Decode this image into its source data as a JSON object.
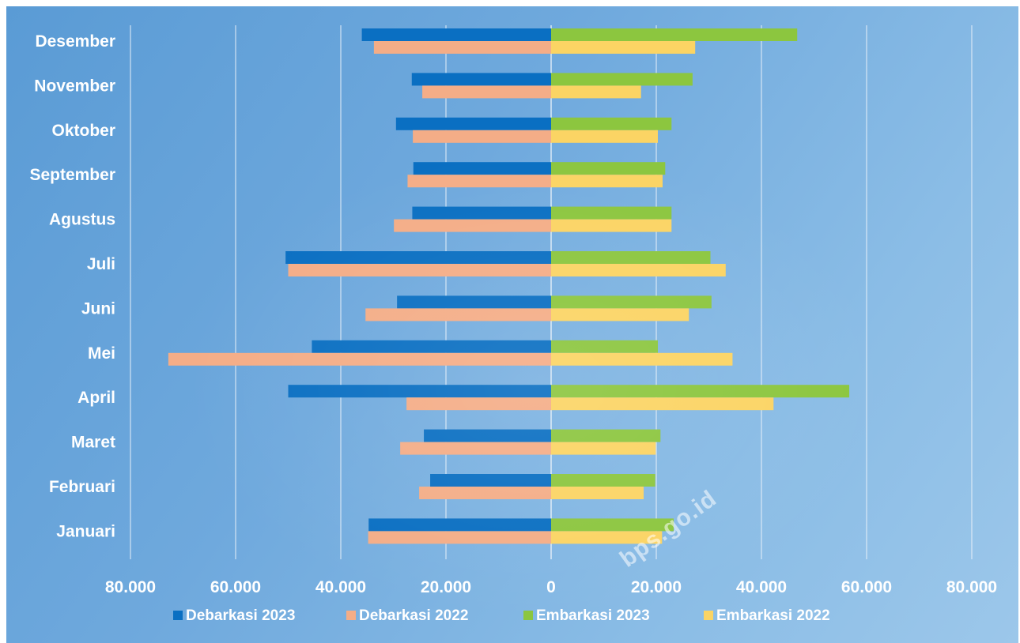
{
  "chart_data": {
    "type": "bar",
    "orientation": "horizontal",
    "categories": [
      "Desember",
      "November",
      "Oktober",
      "September",
      "Agustus",
      "Juli",
      "Juni",
      "Mei",
      "April",
      "Maret",
      "Februari",
      "Januari"
    ],
    "series": [
      {
        "name": "Debarkasi 2023",
        "color": "#0a6fc2",
        "values": [
          36000,
          26500,
          29500,
          26200,
          26400,
          50500,
          29300,
          45500,
          50000,
          24200,
          23000,
          34700
        ]
      },
      {
        "name": "Debarkasi 2022",
        "color": "#f4ad87",
        "values": [
          33700,
          24500,
          26300,
          27300,
          29900,
          50000,
          35300,
          72800,
          27500,
          28700,
          25100,
          34800
        ]
      },
      {
        "name": "Embarkasi 2023",
        "color": "#8cc63f",
        "values": [
          46800,
          26900,
          22900,
          21700,
          22900,
          30300,
          30500,
          20300,
          56700,
          20800,
          19800,
          23300
        ]
      },
      {
        "name": "Embarkasi 2022",
        "color": "#fbd464",
        "values": [
          27400,
          17100,
          20300,
          21200,
          22900,
          33200,
          26200,
          34500,
          42300,
          19900,
          17600,
          21100
        ]
      }
    ],
    "xlim": [
      -80000,
      80000
    ],
    "x_ticks": [
      -80000,
      -60000,
      -40000,
      -20000,
      0,
      20000,
      40000,
      60000,
      80000
    ],
    "x_tick_labels": [
      "80.000",
      "60.000",
      "40.000",
      "20.000",
      "0",
      "20.000",
      "40.000",
      "60.000",
      "80.000"
    ],
    "grid": "vertical",
    "legend_position": "bottom",
    "title": "",
    "xlabel": "",
    "ylabel": ""
  },
  "watermark": "bps.go.id"
}
